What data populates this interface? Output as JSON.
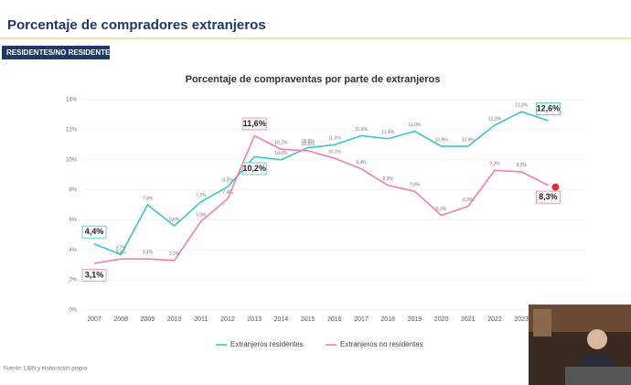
{
  "header": {
    "title": "Porcentaje de compradores extranjeros",
    "tab": "RESIDENTES/NO RESIDENTES"
  },
  "chart_data": {
    "type": "line",
    "title": "Porcentaje de compraventas por parte de extranjeros",
    "categories": [
      "2007",
      "2008",
      "2009",
      "2010",
      "2011",
      "2012",
      "2013",
      "2014",
      "2015",
      "2016",
      "2017",
      "2018",
      "2019",
      "2020",
      "2021",
      "2022",
      "2023",
      null
    ],
    "series": [
      {
        "name": "Extranjeros residentes",
        "color": "#3fc3c9",
        "values": [
          4.4,
          3.7,
          7.0,
          5.6,
          7.2,
          8.2,
          10.2,
          10.0,
          10.8,
          11.0,
          11.6,
          11.4,
          11.9,
          10.9,
          10.9,
          12.3,
          13.2,
          12.6
        ],
        "value_labels": [
          "4,4%",
          "3,7%",
          "7,0%",
          "5,6%",
          "7,2%",
          "8,2%",
          "10,2%",
          "10,0%",
          "10,8%",
          "11,0%",
          "11,6%",
          "11,4%",
          "11,9%",
          "10,9%",
          "10,9%",
          "12,3%",
          "13,2%",
          "12,6%"
        ],
        "highlight": [
          0,
          6,
          17
        ]
      },
      {
        "name": "Extranjeros no residentes",
        "color": "#f27db2",
        "values": [
          3.1,
          3.4,
          3.4,
          3.3,
          5.9,
          7.4,
          11.6,
          10.7,
          10.6,
          10.1,
          9.4,
          8.3,
          7.9,
          6.3,
          6.9,
          9.3,
          9.2,
          8.3
        ],
        "value_labels": [
          "3,1%",
          "3,4%",
          "3,4%",
          "3,3%",
          "5,9%",
          "7,4%",
          "11,6%",
          "10,7%",
          "10,6%",
          "10,1%",
          "9,4%",
          "8,3%",
          "7,9%",
          "6,3%",
          "6,9%",
          "9,3%",
          "9,2%",
          "8,3%"
        ],
        "highlight": [
          0,
          6,
          17
        ]
      }
    ],
    "ylim": [
      0,
      14
    ],
    "yticks": [
      {
        "value": 0,
        "label": "0%"
      },
      {
        "value": 2,
        "label": "2%"
      },
      {
        "value": 4,
        "label": "4%"
      },
      {
        "value": 6,
        "label": "6%"
      },
      {
        "value": 8,
        "label": "8%"
      },
      {
        "value": 10,
        "label": "10%"
      },
      {
        "value": 12,
        "label": "12%"
      },
      {
        "value": 14,
        "label": "14%"
      }
    ],
    "legend": "bottom",
    "source": "Fuente: LIBN y elaboración propia"
  }
}
